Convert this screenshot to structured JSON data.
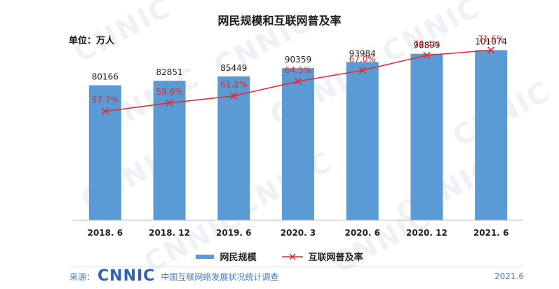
{
  "watermark_text": "CNNIC",
  "title": "网民规模和互联网普及率",
  "unit_label": "单位：万人",
  "legend": {
    "bar_label": "网民规模",
    "line_label": "互联网普及率"
  },
  "colors": {
    "bar": "#5b9bd5",
    "line": "#e8272b",
    "axis": "#bfbfbf",
    "text": "#222222"
  },
  "footer": {
    "source_label": "来源：",
    "logo_text": "CNNIC",
    "org_name": "中国互联网络发展状况统计调查",
    "date": "2021.6"
  },
  "chart_data": {
    "type": "bar",
    "title": "网民规模和互联网普及率",
    "ylabel": "单位：万人",
    "categories": [
      "2018. 6",
      "2018. 12",
      "2019. 6",
      "2020. 3",
      "2020. 6",
      "2020. 12",
      "2021. 6"
    ],
    "series": [
      {
        "name": "网民规模",
        "type": "bar",
        "values": [
          80166,
          82851,
          85449,
          90359,
          93984,
          98899,
          101074
        ]
      },
      {
        "name": "互联网普及率",
        "type": "line",
        "marker": "x",
        "values": [
          57.7,
          59.6,
          61.2,
          64.5,
          67.0,
          70.4,
          71.6
        ],
        "labels": [
          "57.7%",
          "59.6%",
          "61.2%",
          "64.5%",
          "67.0%",
          "70.4%",
          "71.6%"
        ]
      }
    ],
    "bar_ylim": [
      0,
      110000
    ],
    "line_ylim": [
      33,
      75
    ],
    "legend_position": "bottom-center"
  }
}
